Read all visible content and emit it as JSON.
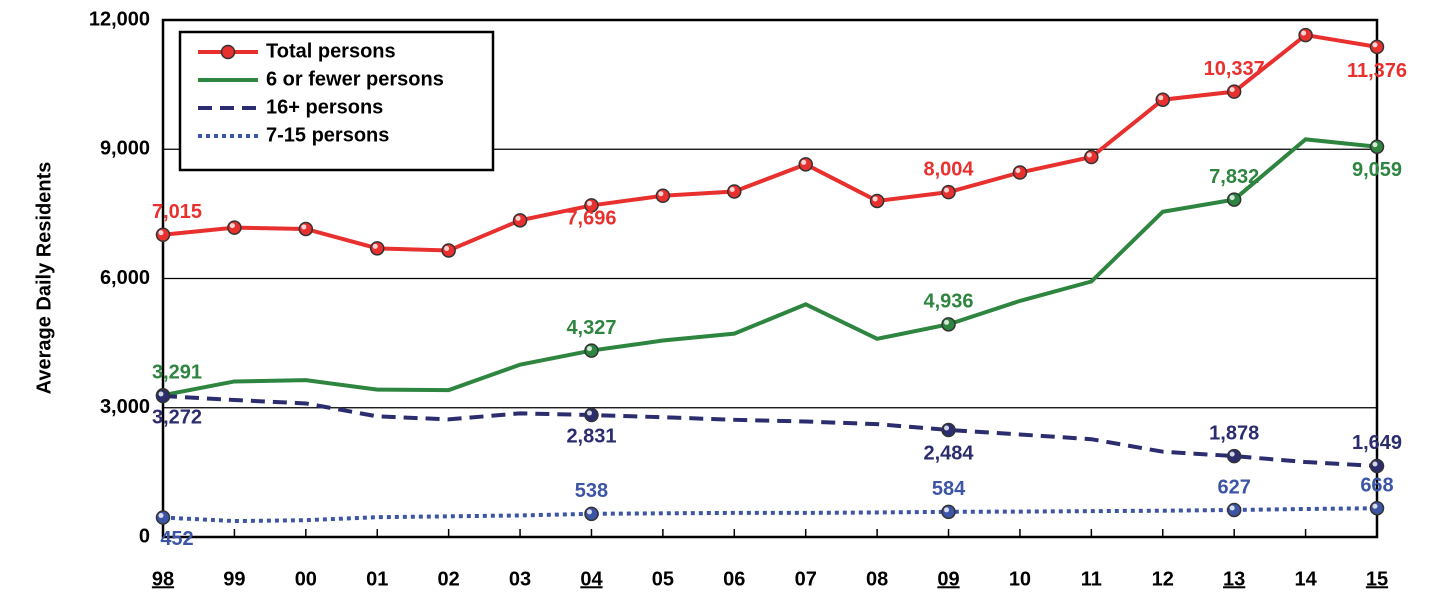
{
  "chart_data": {
    "type": "line",
    "y_label": "Average Daily Residents",
    "categories": [
      "98",
      "99",
      "00",
      "01",
      "02",
      "03",
      "04",
      "05",
      "06",
      "07",
      "08",
      "09",
      "10",
      "11",
      "12",
      "13",
      "14",
      "15"
    ],
    "ylim": [
      0,
      12000
    ],
    "yticks": [
      0,
      {
        "value": 3000,
        "label": "3,000"
      },
      {
        "value": 6000,
        "label": "6,000"
      },
      {
        "value": 9000,
        "label": "9,000"
      },
      {
        "value": 12000,
        "label": "12,000"
      }
    ],
    "grid": true,
    "legend": "top-left",
    "series": [
      {
        "name": "Total persons",
        "color": "#e8312f",
        "dash": "solid",
        "markers": "all",
        "values": [
          7015,
          7180,
          7150,
          6700,
          6650,
          7350,
          7696,
          7920,
          8020,
          8650,
          7800,
          8004,
          8460,
          8820,
          10150,
          10337,
          11650,
          11376
        ],
        "value_labels": [
          "7,015",
          null,
          null,
          null,
          null,
          null,
          "7,696",
          null,
          null,
          null,
          null,
          "8,004",
          null,
          null,
          null,
          "10,337",
          null,
          "11,376"
        ]
      },
      {
        "name": "6 or fewer persons",
        "color": "#2e8540",
        "dash": "solid",
        "markers": "labeled",
        "values": [
          3291,
          3610,
          3640,
          3420,
          3410,
          4000,
          4327,
          4560,
          4720,
          5400,
          4600,
          4936,
          5480,
          5930,
          7550,
          7832,
          9230,
          9059
        ],
        "value_labels": [
          "3,291",
          null,
          null,
          null,
          null,
          null,
          "4,327",
          null,
          null,
          null,
          null,
          "4,936",
          null,
          null,
          null,
          "7,832",
          null,
          "9,059"
        ]
      },
      {
        "name": "16+ persons",
        "color": "#2b2d6e",
        "dash": "dashed",
        "markers": "labeled",
        "values": [
          3272,
          3180,
          3100,
          2800,
          2730,
          2870,
          2831,
          2780,
          2720,
          2680,
          2620,
          2484,
          2380,
          2270,
          1980,
          1878,
          1740,
          1649
        ],
        "value_labels": [
          "3,272",
          null,
          null,
          null,
          null,
          null,
          "2,831",
          null,
          null,
          null,
          null,
          "2,484",
          null,
          null,
          null,
          "1,878",
          null,
          "1,649"
        ]
      },
      {
        "name": "7-15 persons",
        "color": "#3d55a5",
        "dash": "dotted",
        "markers": "labeled",
        "values": [
          452,
          370,
          390,
          460,
          480,
          500,
          538,
          550,
          560,
          560,
          570,
          584,
          590,
          600,
          610,
          627,
          650,
          668
        ],
        "value_labels": [
          "452",
          null,
          null,
          null,
          null,
          null,
          "538",
          null,
          null,
          null,
          null,
          "584",
          null,
          null,
          null,
          "627",
          null,
          "668"
        ]
      }
    ]
  }
}
